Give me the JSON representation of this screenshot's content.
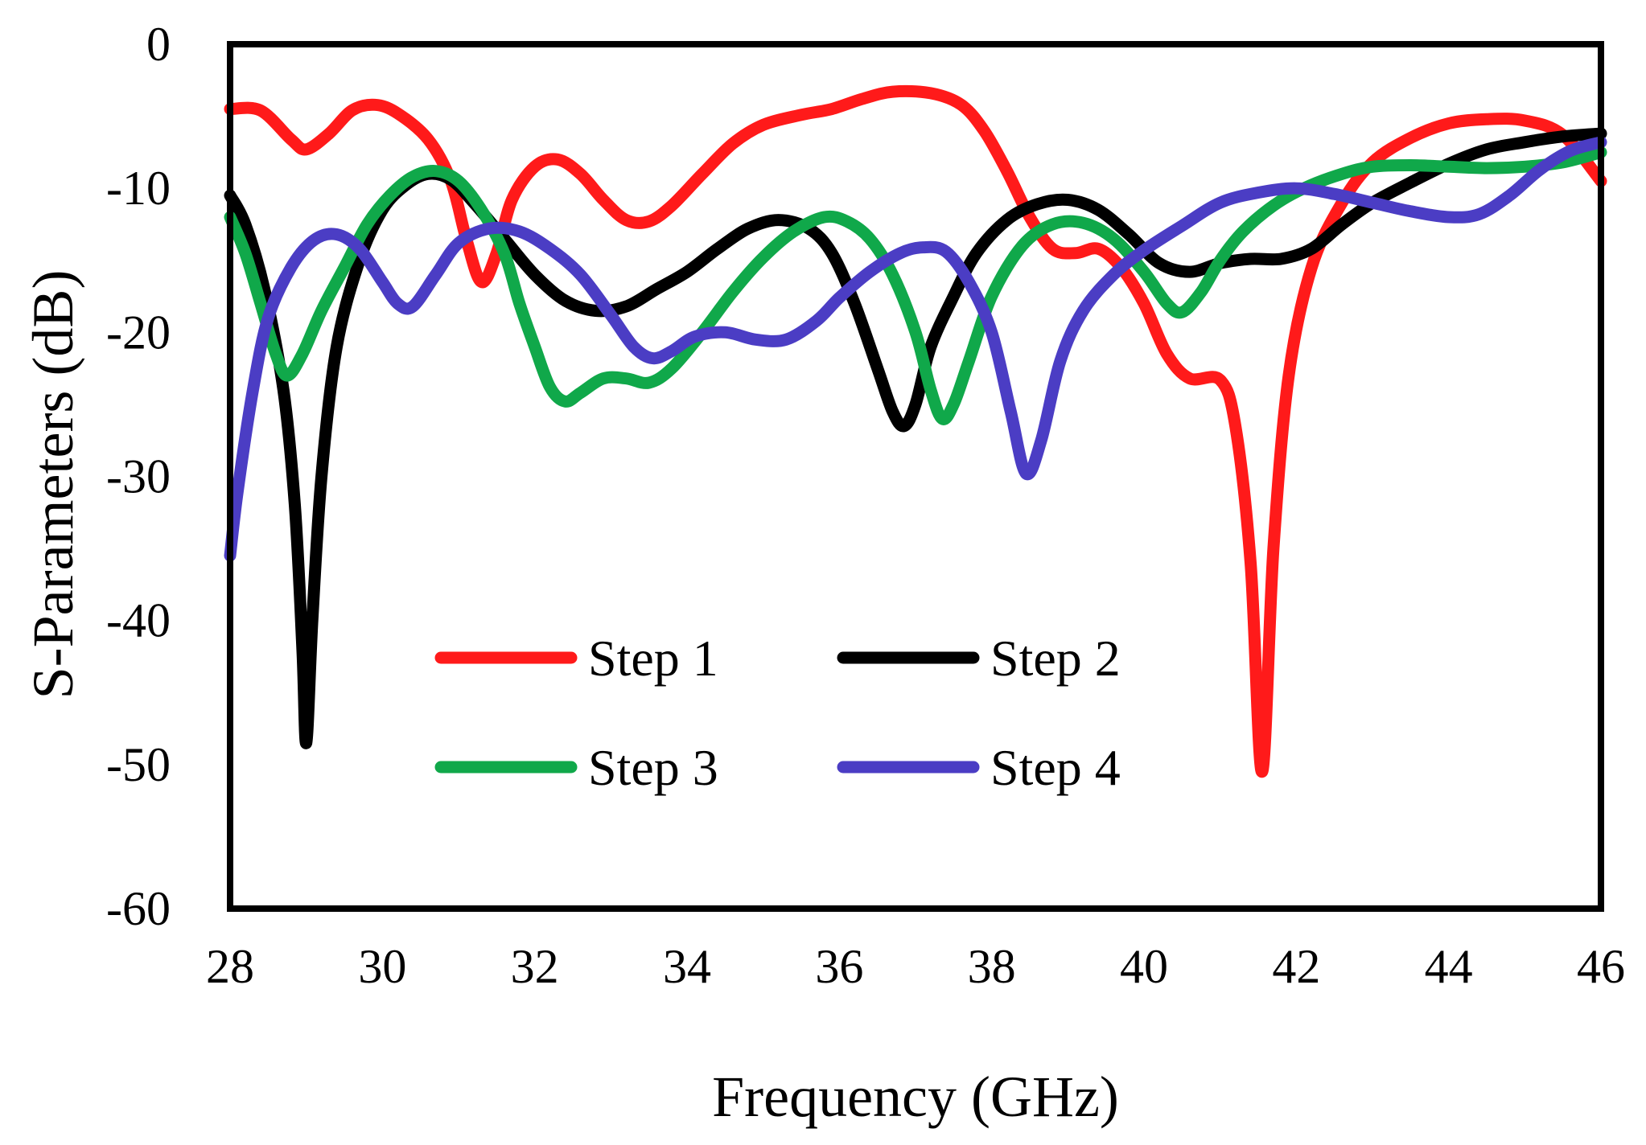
{
  "chart_data": {
    "type": "line",
    "title": "",
    "xlabel": "Frequency (GHz)",
    "ylabel": "S-Parameters (dB)",
    "xlim": [
      28,
      46
    ],
    "ylim": [
      -60,
      0
    ],
    "xticks": [
      28,
      30,
      32,
      34,
      36,
      38,
      40,
      42,
      44,
      46
    ],
    "yticks": [
      0,
      -10,
      -20,
      -30,
      -40,
      -50,
      -60
    ],
    "xtick_labels": [
      "28",
      "30",
      "32",
      "34",
      "36",
      "38",
      "40",
      "42",
      "44",
      "46"
    ],
    "ytick_labels": [
      "0",
      "-10",
      "-20",
      "-30",
      "-40",
      "-50",
      "-60"
    ],
    "grid": false,
    "legend_position": "center-bottom",
    "series": [
      {
        "name": "Step 1",
        "color": "#ff1a1a",
        "points": [
          [
            28,
            -4.5
          ],
          [
            28.4,
            -4.6
          ],
          [
            28.8,
            -6.6
          ],
          [
            29.0,
            -7.3
          ],
          [
            29.3,
            -6.2
          ],
          [
            29.6,
            -4.6
          ],
          [
            29.9,
            -4.2
          ],
          [
            30.2,
            -4.8
          ],
          [
            30.6,
            -6.6
          ],
          [
            30.9,
            -9.5
          ],
          [
            31.1,
            -13.5
          ],
          [
            31.3,
            -16.5
          ],
          [
            31.5,
            -14.5
          ],
          [
            31.7,
            -10.8
          ],
          [
            32.0,
            -8.5
          ],
          [
            32.3,
            -8.0
          ],
          [
            32.6,
            -9.0
          ],
          [
            32.9,
            -10.8
          ],
          [
            33.2,
            -12.2
          ],
          [
            33.5,
            -12.3
          ],
          [
            33.8,
            -11.2
          ],
          [
            34.2,
            -9.0
          ],
          [
            34.6,
            -6.9
          ],
          [
            35.0,
            -5.6
          ],
          [
            35.5,
            -4.9
          ],
          [
            35.9,
            -4.5
          ],
          [
            36.3,
            -3.8
          ],
          [
            36.7,
            -3.3
          ],
          [
            37.2,
            -3.4
          ],
          [
            37.6,
            -4.2
          ],
          [
            37.9,
            -6.0
          ],
          [
            38.2,
            -8.8
          ],
          [
            38.5,
            -12.0
          ],
          [
            38.8,
            -14.2
          ],
          [
            39.1,
            -14.5
          ],
          [
            39.4,
            -14.2
          ],
          [
            39.7,
            -15.5
          ],
          [
            40.0,
            -18.0
          ],
          [
            40.3,
            -21.5
          ],
          [
            40.6,
            -23.2
          ],
          [
            41.0,
            -23.3
          ],
          [
            41.2,
            -26.5
          ],
          [
            41.4,
            -36.0
          ],
          [
            41.55,
            -50.5
          ],
          [
            41.7,
            -35.0
          ],
          [
            41.9,
            -23.0
          ],
          [
            42.2,
            -15.5
          ],
          [
            42.6,
            -11.0
          ],
          [
            43.0,
            -8.2
          ],
          [
            43.5,
            -6.5
          ],
          [
            44.0,
            -5.5
          ],
          [
            44.5,
            -5.2
          ],
          [
            45.0,
            -5.3
          ],
          [
            45.5,
            -6.3
          ],
          [
            46.0,
            -9.5
          ]
        ]
      },
      {
        "name": "Step 2",
        "color": "#000000",
        "points": [
          [
            28,
            -10.5
          ],
          [
            28.2,
            -12.5
          ],
          [
            28.45,
            -17.0
          ],
          [
            28.7,
            -24.0
          ],
          [
            28.85,
            -32.0
          ],
          [
            28.95,
            -42.0
          ],
          [
            29.0,
            -48.5
          ],
          [
            29.08,
            -40.0
          ],
          [
            29.2,
            -30.0
          ],
          [
            29.4,
            -21.0
          ],
          [
            29.7,
            -15.0
          ],
          [
            30.0,
            -11.5
          ],
          [
            30.3,
            -9.8
          ],
          [
            30.6,
            -9.0
          ],
          [
            30.9,
            -9.4
          ],
          [
            31.2,
            -11.0
          ],
          [
            31.6,
            -13.5
          ],
          [
            32.0,
            -16.0
          ],
          [
            32.4,
            -17.8
          ],
          [
            32.8,
            -18.5
          ],
          [
            33.2,
            -18.2
          ],
          [
            33.6,
            -17.0
          ],
          [
            34.0,
            -15.8
          ],
          [
            34.4,
            -14.2
          ],
          [
            34.8,
            -12.8
          ],
          [
            35.2,
            -12.2
          ],
          [
            35.6,
            -12.8
          ],
          [
            35.9,
            -14.5
          ],
          [
            36.2,
            -18.0
          ],
          [
            36.5,
            -22.5
          ],
          [
            36.7,
            -25.5
          ],
          [
            36.85,
            -26.5
          ],
          [
            37.0,
            -25.0
          ],
          [
            37.2,
            -21.0
          ],
          [
            37.5,
            -17.5
          ],
          [
            37.8,
            -14.5
          ],
          [
            38.2,
            -12.2
          ],
          [
            38.6,
            -11.1
          ],
          [
            39.0,
            -10.8
          ],
          [
            39.4,
            -11.5
          ],
          [
            39.8,
            -13.2
          ],
          [
            40.2,
            -15.2
          ],
          [
            40.6,
            -15.8
          ],
          [
            41.0,
            -15.2
          ],
          [
            41.4,
            -14.9
          ],
          [
            41.8,
            -14.9
          ],
          [
            42.2,
            -14.2
          ],
          [
            42.6,
            -12.5
          ],
          [
            43.0,
            -11.0
          ],
          [
            43.5,
            -9.6
          ],
          [
            44.0,
            -8.3
          ],
          [
            44.5,
            -7.3
          ],
          [
            45.0,
            -6.8
          ],
          [
            45.5,
            -6.4
          ],
          [
            46.0,
            -6.2
          ]
        ]
      },
      {
        "name": "Step 3",
        "color": "#10a84a",
        "points": [
          [
            28,
            -12.0
          ],
          [
            28.2,
            -14.5
          ],
          [
            28.4,
            -18.0
          ],
          [
            28.6,
            -21.5
          ],
          [
            28.75,
            -23.0
          ],
          [
            28.95,
            -21.5
          ],
          [
            29.2,
            -18.5
          ],
          [
            29.5,
            -15.5
          ],
          [
            29.8,
            -12.5
          ],
          [
            30.1,
            -10.5
          ],
          [
            30.4,
            -9.2
          ],
          [
            30.7,
            -8.8
          ],
          [
            31.0,
            -9.5
          ],
          [
            31.3,
            -11.5
          ],
          [
            31.6,
            -14.5
          ],
          [
            31.8,
            -18.0
          ],
          [
            32.0,
            -21.0
          ],
          [
            32.2,
            -23.8
          ],
          [
            32.4,
            -24.8
          ],
          [
            32.6,
            -24.2
          ],
          [
            32.9,
            -23.2
          ],
          [
            33.2,
            -23.2
          ],
          [
            33.5,
            -23.5
          ],
          [
            33.8,
            -22.5
          ],
          [
            34.2,
            -20.0
          ],
          [
            34.6,
            -17.2
          ],
          [
            35.0,
            -14.8
          ],
          [
            35.4,
            -13.0
          ],
          [
            35.8,
            -12.0
          ],
          [
            36.1,
            -12.3
          ],
          [
            36.4,
            -13.5
          ],
          [
            36.7,
            -16.0
          ],
          [
            37.0,
            -20.0
          ],
          [
            37.2,
            -24.0
          ],
          [
            37.35,
            -26.0
          ],
          [
            37.5,
            -25.0
          ],
          [
            37.7,
            -22.0
          ],
          [
            38.0,
            -17.5
          ],
          [
            38.4,
            -14.0
          ],
          [
            38.8,
            -12.5
          ],
          [
            39.2,
            -12.4
          ],
          [
            39.6,
            -13.5
          ],
          [
            40.0,
            -15.8
          ],
          [
            40.3,
            -18.0
          ],
          [
            40.5,
            -18.6
          ],
          [
            40.75,
            -17.2
          ],
          [
            41.0,
            -15.0
          ],
          [
            41.3,
            -13.0
          ],
          [
            41.7,
            -11.2
          ],
          [
            42.1,
            -10.0
          ],
          [
            42.6,
            -9.0
          ],
          [
            43.0,
            -8.5
          ],
          [
            43.5,
            -8.4
          ],
          [
            44.0,
            -8.5
          ],
          [
            44.5,
            -8.6
          ],
          [
            45.0,
            -8.5
          ],
          [
            45.5,
            -8.2
          ],
          [
            46.0,
            -7.5
          ]
        ]
      },
      {
        "name": "Step 4",
        "color": "#4b3dc4",
        "points": [
          [
            28,
            -35.5
          ],
          [
            28.1,
            -31.0
          ],
          [
            28.3,
            -24.0
          ],
          [
            28.5,
            -19.0
          ],
          [
            28.8,
            -15.5
          ],
          [
            29.1,
            -13.6
          ],
          [
            29.4,
            -13.2
          ],
          [
            29.7,
            -14.2
          ],
          [
            30.0,
            -16.5
          ],
          [
            30.2,
            -18.0
          ],
          [
            30.4,
            -18.2
          ],
          [
            30.7,
            -16.0
          ],
          [
            31.0,
            -13.8
          ],
          [
            31.4,
            -12.8
          ],
          [
            31.8,
            -13.0
          ],
          [
            32.2,
            -14.2
          ],
          [
            32.6,
            -16.0
          ],
          [
            33.0,
            -18.8
          ],
          [
            33.3,
            -21.0
          ],
          [
            33.55,
            -21.8
          ],
          [
            33.8,
            -21.3
          ],
          [
            34.1,
            -20.3
          ],
          [
            34.5,
            -20.0
          ],
          [
            34.9,
            -20.5
          ],
          [
            35.3,
            -20.5
          ],
          [
            35.7,
            -19.2
          ],
          [
            36.0,
            -17.6
          ],
          [
            36.4,
            -15.8
          ],
          [
            36.8,
            -14.5
          ],
          [
            37.1,
            -14.1
          ],
          [
            37.4,
            -14.4
          ],
          [
            37.7,
            -16.5
          ],
          [
            38.0,
            -20.0
          ],
          [
            38.25,
            -25.5
          ],
          [
            38.45,
            -29.8
          ],
          [
            38.65,
            -27.5
          ],
          [
            38.9,
            -22.0
          ],
          [
            39.2,
            -18.5
          ],
          [
            39.6,
            -16.0
          ],
          [
            40.0,
            -14.3
          ],
          [
            40.5,
            -12.6
          ],
          [
            41.0,
            -11.0
          ],
          [
            41.5,
            -10.3
          ],
          [
            42.0,
            -10.0
          ],
          [
            42.5,
            -10.4
          ],
          [
            43.0,
            -11.0
          ],
          [
            43.5,
            -11.6
          ],
          [
            44.0,
            -12.0
          ],
          [
            44.4,
            -11.8
          ],
          [
            44.8,
            -10.5
          ],
          [
            45.2,
            -8.7
          ],
          [
            45.6,
            -7.4
          ],
          [
            46.0,
            -6.8
          ]
        ]
      }
    ]
  }
}
